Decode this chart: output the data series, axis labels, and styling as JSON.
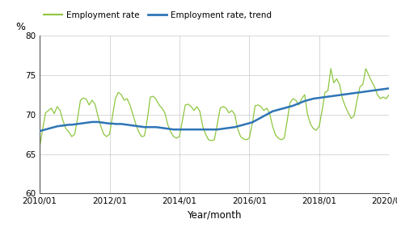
{
  "ylabel": "%",
  "xlabel": "Year/month",
  "ylim": [
    60,
    80
  ],
  "yticks": [
    60,
    65,
    70,
    75,
    80
  ],
  "xtick_labels": [
    "2010/01",
    "2012/01",
    "2014/01",
    "2016/01",
    "2018/01",
    "2020/01"
  ],
  "legend_employment": "Employment rate",
  "legend_trend": "Employment rate, trend",
  "color_employment": "#8DC63F",
  "color_trend": "#2E75B6",
  "employment_rate": [
    65.9,
    68.1,
    70.2,
    70.5,
    70.8,
    70.1,
    71.0,
    70.5,
    69.2,
    68.2,
    67.8,
    67.2,
    67.5,
    69.5,
    71.8,
    72.1,
    71.9,
    71.2,
    71.8,
    71.3,
    69.8,
    68.5,
    67.5,
    67.2,
    67.5,
    69.8,
    72.0,
    72.8,
    72.5,
    71.8,
    72.0,
    71.2,
    70.0,
    68.8,
    67.8,
    67.2,
    67.3,
    69.5,
    72.2,
    72.3,
    71.9,
    71.2,
    70.8,
    70.2,
    68.7,
    67.8,
    67.2,
    67.0,
    67.2,
    69.2,
    71.2,
    71.3,
    71.0,
    70.5,
    71.0,
    70.4,
    68.5,
    67.5,
    66.8,
    66.7,
    66.8,
    68.8,
    70.8,
    71.0,
    70.8,
    70.2,
    70.5,
    70.0,
    68.2,
    67.2,
    66.9,
    66.8,
    67.0,
    68.8,
    71.1,
    71.2,
    71.0,
    70.5,
    70.8,
    70.1,
    68.5,
    67.4,
    67.0,
    66.8,
    67.0,
    69.2,
    71.5,
    72.0,
    71.8,
    71.2,
    72.0,
    72.5,
    70.0,
    68.8,
    68.2,
    68.0,
    68.5,
    70.5,
    72.8,
    73.0,
    75.8,
    74.0,
    74.5,
    73.8,
    72.0,
    71.0,
    70.2,
    69.5,
    69.8,
    71.8,
    73.5,
    73.8,
    75.8,
    75.0,
    74.2,
    73.5,
    72.5,
    72.0,
    72.2,
    72.0,
    72.5
  ],
  "trend": [
    67.9,
    68.0,
    68.1,
    68.2,
    68.3,
    68.4,
    68.5,
    68.55,
    68.6,
    68.65,
    68.7,
    68.7,
    68.75,
    68.8,
    68.85,
    68.9,
    68.95,
    69.0,
    69.05,
    69.05,
    69.05,
    69.0,
    68.95,
    68.9,
    68.85,
    68.85,
    68.8,
    68.8,
    68.8,
    68.75,
    68.7,
    68.65,
    68.6,
    68.55,
    68.5,
    68.45,
    68.4,
    68.4,
    68.4,
    68.4,
    68.4,
    68.35,
    68.3,
    68.25,
    68.2,
    68.15,
    68.1,
    68.1,
    68.1,
    68.1,
    68.1,
    68.1,
    68.1,
    68.1,
    68.1,
    68.1,
    68.1,
    68.1,
    68.1,
    68.1,
    68.1,
    68.1,
    68.15,
    68.2,
    68.25,
    68.3,
    68.35,
    68.4,
    68.5,
    68.6,
    68.7,
    68.8,
    68.9,
    69.0,
    69.2,
    69.4,
    69.6,
    69.8,
    70.0,
    70.2,
    70.4,
    70.5,
    70.6,
    70.7,
    70.8,
    70.9,
    71.0,
    71.1,
    71.25,
    71.4,
    71.55,
    71.7,
    71.8,
    71.9,
    72.0,
    72.05,
    72.1,
    72.15,
    72.2,
    72.25,
    72.3,
    72.35,
    72.4,
    72.45,
    72.5,
    72.55,
    72.6,
    72.65,
    72.7,
    72.75,
    72.8,
    72.85,
    72.9,
    72.95,
    73.0,
    73.05,
    73.1,
    73.15,
    73.2,
    73.25,
    73.3
  ]
}
